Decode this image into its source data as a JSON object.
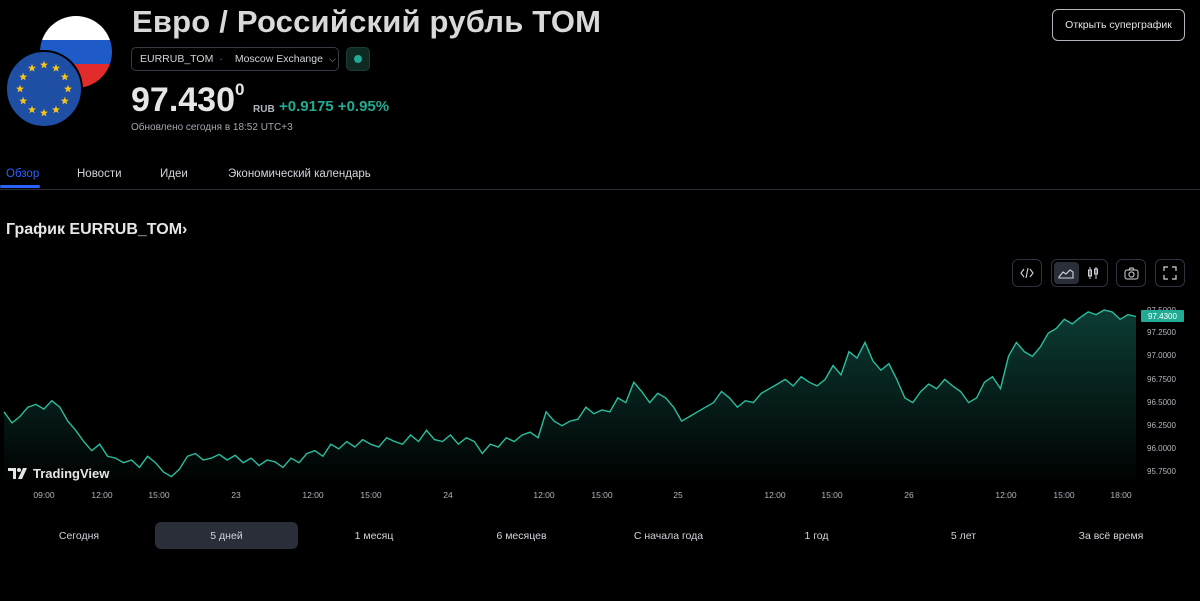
{
  "header": {
    "title": "Евро / Российский рубль TOM",
    "symbol": "EURRUB_TOM",
    "separator": "·",
    "exchange": "Moscow Exchange",
    "price_main": "97.430",
    "price_sup": "0",
    "currency": "RUB",
    "change": "+0.9175 +0.95%",
    "updated": "Обновлено сегодня в 18:52 UTC+3",
    "supergraph_button": "Открыть суперграфик"
  },
  "tabs": [
    {
      "label": "Обзор",
      "active": true
    },
    {
      "label": "Новости",
      "active": false
    },
    {
      "label": "Идеи",
      "active": false
    },
    {
      "label": "Экономический календарь",
      "active": false
    }
  ],
  "chart_section_title": "График EURRUB_TOM›",
  "toolbar": {
    "icons": [
      "embed-icon",
      "area-chart-icon",
      "candles-icon",
      "camera-icon",
      "fullscreen-icon"
    ]
  },
  "watermark": "TradingView",
  "price_tag": "97.4300",
  "colors": {
    "accent_green": "#22ab94",
    "active_blue": "#2962ff",
    "background": "#000000"
  },
  "chart_data": {
    "type": "area",
    "x_tick_labels": [
      "09:00",
      "12:00",
      "15:00",
      "23",
      "12:00",
      "15:00",
      "24",
      "12:00",
      "15:00",
      "25",
      "12:00",
      "15:00",
      "26",
      "12:00",
      "15:00",
      "18:00"
    ],
    "y_tick_labels": [
      "97.5000",
      "97.2500",
      "97.0000",
      "96.7500",
      "96.5000",
      "96.2500",
      "96.0000",
      "95.7500"
    ],
    "ylim": [
      95.7,
      97.55
    ],
    "last_value": 97.43,
    "values": [
      96.4,
      96.28,
      96.35,
      96.45,
      96.48,
      96.43,
      96.52,
      96.45,
      96.3,
      96.2,
      96.08,
      95.98,
      96.05,
      95.92,
      95.9,
      95.85,
      95.88,
      95.8,
      95.92,
      95.85,
      95.75,
      95.7,
      95.78,
      95.92,
      95.95,
      95.88,
      95.9,
      95.94,
      95.88,
      95.93,
      95.85,
      95.9,
      95.82,
      95.88,
      95.86,
      95.8,
      95.9,
      95.85,
      95.95,
      95.98,
      95.92,
      96.05,
      96.0,
      96.08,
      96.02,
      96.1,
      96.05,
      96.02,
      96.12,
      96.08,
      96.05,
      96.15,
      96.08,
      96.2,
      96.1,
      96.08,
      96.15,
      96.05,
      96.12,
      96.08,
      95.95,
      96.05,
      96.02,
      96.12,
      96.08,
      96.15,
      96.18,
      96.12,
      96.4,
      96.3,
      96.25,
      96.3,
      96.32,
      96.45,
      96.38,
      96.42,
      96.4,
      96.55,
      96.5,
      96.72,
      96.62,
      96.5,
      96.6,
      96.55,
      96.45,
      96.3,
      96.35,
      96.4,
      96.45,
      96.5,
      96.62,
      96.55,
      96.45,
      96.52,
      96.5,
      96.6,
      96.65,
      96.7,
      96.75,
      96.68,
      96.78,
      96.72,
      96.68,
      96.75,
      96.9,
      96.8,
      97.05,
      96.98,
      97.15,
      96.95,
      96.85,
      96.92,
      96.75,
      96.55,
      96.5,
      96.62,
      96.7,
      96.65,
      96.75,
      96.68,
      96.62,
      96.5,
      96.55,
      96.72,
      96.78,
      96.65,
      97.0,
      97.15,
      97.05,
      97.0,
      97.1,
      97.25,
      97.3,
      97.4,
      97.35,
      97.42,
      97.48,
      97.45,
      97.5,
      97.48,
      97.4,
      97.45,
      97.43
    ]
  },
  "ranges": [
    {
      "label": "Сегодня",
      "active": false
    },
    {
      "label": "5 дней",
      "active": true
    },
    {
      "label": "1 месяц",
      "active": false
    },
    {
      "label": "6 месяцев",
      "active": false
    },
    {
      "label": "С начала года",
      "active": false
    },
    {
      "label": "1 год",
      "active": false
    },
    {
      "label": "5 лет",
      "active": false
    },
    {
      "label": "За всё время",
      "active": false
    }
  ]
}
